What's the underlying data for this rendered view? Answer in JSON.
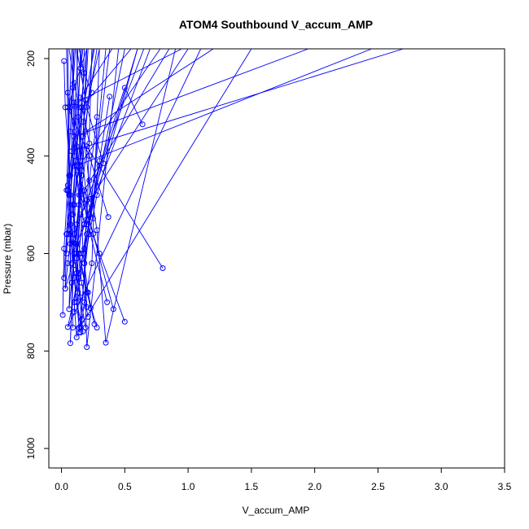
{
  "chart_data": {
    "type": "line",
    "title": "ATOM4 Southbound V_accum_AMP",
    "xlabel": "V_accum_AMP",
    "ylabel": "Pressure (mbar)",
    "xlim": [
      -0.1,
      3.5
    ],
    "ylim": [
      1040,
      180
    ],
    "y_reversed": true,
    "x_ticks": [
      0.0,
      0.5,
      1.0,
      1.5,
      2.0,
      2.5,
      3.0,
      3.5
    ],
    "x_tick_labels": [
      "0.0",
      "0.5",
      "1.0",
      "1.5",
      "2.0",
      "2.5",
      "3.0",
      "3.5"
    ],
    "y_ticks": [
      200,
      400,
      600,
      800,
      1000
    ],
    "y_tick_labels": [
      "200",
      "400",
      "600",
      "800",
      "1000"
    ],
    "series_color": "#0000ff",
    "series": [
      {
        "points": [
          [
            0.02,
            205
          ],
          [
            0.03,
            300
          ],
          [
            0.07,
            440
          ],
          [
            0.04,
            560
          ],
          [
            0.03,
            672
          ],
          [
            0.6,
            180
          ]
        ]
      },
      {
        "points": [
          [
            0.05,
            270
          ],
          [
            0.12,
            380
          ],
          [
            0.08,
            520
          ],
          [
            0.06,
            714
          ],
          [
            0.25,
            180
          ]
        ]
      },
      {
        "points": [
          [
            0.1,
            290
          ],
          [
            0.15,
            470
          ],
          [
            0.12,
            640
          ],
          [
            0.14,
            762
          ],
          [
            0.35,
            180
          ]
        ]
      },
      {
        "points": [
          [
            0.13,
            320
          ],
          [
            0.2,
            490
          ],
          [
            0.18,
            620
          ],
          [
            0.2,
            792
          ],
          [
            0.45,
            180
          ]
        ]
      },
      {
        "points": [
          [
            0.28,
            320
          ],
          [
            0.22,
            450
          ],
          [
            0.28,
            552
          ],
          [
            0.35,
            783
          ],
          [
            0.9,
            180
          ]
        ]
      },
      {
        "points": [
          [
            0.38,
            278
          ],
          [
            0.3,
            410
          ],
          [
            0.2,
            560
          ],
          [
            0.15,
            750
          ],
          [
            1.5,
            180
          ]
        ]
      },
      {
        "points": [
          [
            0.64,
            335
          ],
          [
            0.5,
            260
          ],
          [
            0.3,
            420
          ],
          [
            0.18,
            590
          ],
          [
            0.05,
            751
          ],
          [
            1.1,
            180
          ]
        ]
      },
      {
        "points": [
          [
            0.8,
            630
          ],
          [
            0.2,
            380
          ],
          [
            0.1,
            600
          ],
          [
            0.07,
            784
          ],
          [
            0.15,
            180
          ]
        ]
      },
      {
        "points": [
          [
            0.5,
            740
          ],
          [
            0.3,
            600
          ],
          [
            0.15,
            480
          ],
          [
            0.08,
            390
          ],
          [
            2.7,
            180
          ]
        ]
      },
      {
        "points": [
          [
            0.41,
            714
          ],
          [
            0.25,
            560
          ],
          [
            0.12,
            420
          ],
          [
            2.45,
            180
          ]
        ]
      },
      {
        "points": [
          [
            0.36,
            700
          ],
          [
            0.2,
            530
          ],
          [
            0.1,
            360
          ],
          [
            1.95,
            180
          ]
        ]
      },
      {
        "points": [
          [
            0.37,
            525
          ],
          [
            0.22,
            400
          ],
          [
            0.05,
            300
          ],
          [
            0.2,
            180
          ]
        ]
      },
      {
        "points": [
          [
            0.33,
            415
          ],
          [
            0.2,
            300
          ],
          [
            0.12,
            180
          ]
        ]
      },
      {
        "points": [
          [
            0.01,
            726
          ],
          [
            0.02,
            590
          ],
          [
            0.05,
            460
          ],
          [
            0.07,
            350
          ],
          [
            0.1,
            180
          ]
        ]
      },
      {
        "points": [
          [
            0.23,
            488
          ],
          [
            0.17,
            330
          ],
          [
            0.3,
            180
          ]
        ]
      },
      {
        "points": [
          [
            0.25,
            528
          ],
          [
            0.13,
            430
          ],
          [
            0.16,
            300
          ],
          [
            0.55,
            180
          ]
        ]
      },
      {
        "points": [
          [
            0.22,
            374
          ],
          [
            0.15,
            280
          ],
          [
            0.4,
            180
          ]
        ]
      },
      {
        "points": [
          [
            0.15,
            600
          ],
          [
            0.09,
            520
          ],
          [
            0.11,
            410
          ],
          [
            0.2,
            180
          ]
        ]
      },
      {
        "points": [
          [
            0.11,
            624
          ],
          [
            0.06,
            550
          ],
          [
            0.04,
            470
          ],
          [
            0.08,
            180
          ]
        ]
      },
      {
        "points": [
          [
            0.12,
            772
          ],
          [
            0.1,
            700
          ],
          [
            0.14,
            640
          ],
          [
            0.5,
            180
          ]
        ]
      },
      {
        "points": [
          [
            0.21,
            730
          ],
          [
            0.16,
            660
          ],
          [
            0.12,
            580
          ],
          [
            0.7,
            180
          ]
        ]
      },
      {
        "points": [
          [
            0.23,
            712
          ],
          [
            0.14,
            600
          ],
          [
            0.18,
            470
          ],
          [
            0.85,
            180
          ]
        ]
      },
      {
        "points": [
          [
            0.28,
            752
          ],
          [
            0.2,
            680
          ],
          [
            0.1,
            560
          ],
          [
            0.65,
            180
          ]
        ]
      },
      {
        "points": [
          [
            0.16,
            735
          ],
          [
            0.13,
            650
          ],
          [
            0.09,
            500
          ],
          [
            0.28,
            180
          ]
        ]
      },
      {
        "points": [
          [
            0.19,
            752
          ],
          [
            0.15,
            690
          ],
          [
            0.12,
            600
          ],
          [
            0.18,
            180
          ]
        ]
      },
      {
        "points": [
          [
            0.14,
            752
          ],
          [
            0.1,
            650
          ],
          [
            0.07,
            540
          ],
          [
            0.05,
            180
          ]
        ]
      },
      {
        "points": [
          [
            0.09,
            752
          ],
          [
            0.08,
            660
          ],
          [
            0.06,
            560
          ],
          [
            0.13,
            180
          ]
        ]
      },
      {
        "points": [
          [
            0.17,
            760
          ],
          [
            0.12,
            700
          ],
          [
            0.2,
            540
          ],
          [
            0.24,
            180
          ]
        ]
      },
      {
        "points": [
          [
            0.2,
            710
          ],
          [
            0.18,
            620
          ],
          [
            0.22,
            520
          ],
          [
            0.38,
            180
          ]
        ]
      },
      {
        "points": [
          [
            0.08,
            620
          ],
          [
            0.1,
            500
          ],
          [
            0.14,
            420
          ],
          [
            0.78,
            180
          ]
        ]
      },
      {
        "points": [
          [
            0.06,
            440
          ],
          [
            0.1,
            350
          ],
          [
            0.12,
            290
          ],
          [
            0.95,
            180
          ]
        ]
      },
      {
        "points": [
          [
            0.04,
            600
          ],
          [
            0.07,
            480
          ],
          [
            0.1,
            400
          ],
          [
            0.16,
            180
          ]
        ]
      },
      {
        "points": [
          [
            0.12,
            540
          ],
          [
            0.16,
            440
          ],
          [
            0.19,
            350
          ],
          [
            1.2,
            180
          ]
        ]
      },
      {
        "points": [
          [
            0.18,
            540
          ],
          [
            0.14,
            480
          ],
          [
            0.1,
            420
          ],
          [
            0.09,
            180
          ]
        ]
      },
      {
        "points": [
          [
            0.24,
            270
          ],
          [
            0.18,
            230
          ],
          [
            0.14,
            180
          ]
        ]
      },
      {
        "points": [
          [
            0.14,
            300
          ],
          [
            0.1,
            250
          ],
          [
            0.06,
            180
          ]
        ]
      },
      {
        "points": [
          [
            0.19,
            285
          ],
          [
            0.15,
            220
          ],
          [
            0.17,
            180
          ]
        ]
      },
      {
        "points": [
          [
            0.03,
            672
          ],
          [
            0.05,
            620
          ],
          [
            0.07,
            580
          ],
          [
            0.09,
            180
          ]
        ]
      },
      {
        "points": [
          [
            0.15,
            762
          ],
          [
            0.18,
            700
          ],
          [
            0.24,
            620
          ],
          [
            0.3,
            180
          ]
        ]
      },
      {
        "points": [
          [
            0.26,
            745
          ],
          [
            0.21,
            680
          ],
          [
            0.17,
            600
          ],
          [
            0.12,
            180
          ]
        ]
      },
      {
        "points": [
          [
            0.02,
            650
          ],
          [
            0.04,
            560
          ],
          [
            0.06,
            480
          ],
          [
            0.04,
            180
          ]
        ]
      },
      {
        "points": [
          [
            0.1,
            720
          ],
          [
            0.12,
            610
          ],
          [
            0.15,
            520
          ],
          [
            1.0,
            180
          ]
        ]
      },
      {
        "points": [
          [
            0.13,
            680
          ],
          [
            0.09,
            570
          ],
          [
            0.05,
            470
          ],
          [
            0.26,
            180
          ]
        ]
      },
      {
        "points": [
          [
            0.11,
            580
          ],
          [
            0.14,
            500
          ],
          [
            0.16,
            430
          ],
          [
            0.2,
            180
          ]
        ]
      },
      {
        "points": [
          [
            0.18,
            620
          ],
          [
            0.22,
            560
          ],
          [
            0.28,
            480
          ],
          [
            0.6,
            180
          ]
        ]
      },
      {
        "points": [
          [
            0.07,
            300
          ],
          [
            0.09,
            260
          ],
          [
            0.11,
            180
          ]
        ]
      },
      {
        "points": [
          [
            0.15,
            410
          ],
          [
            0.17,
            360
          ],
          [
            0.21,
            180
          ]
        ]
      }
    ]
  }
}
